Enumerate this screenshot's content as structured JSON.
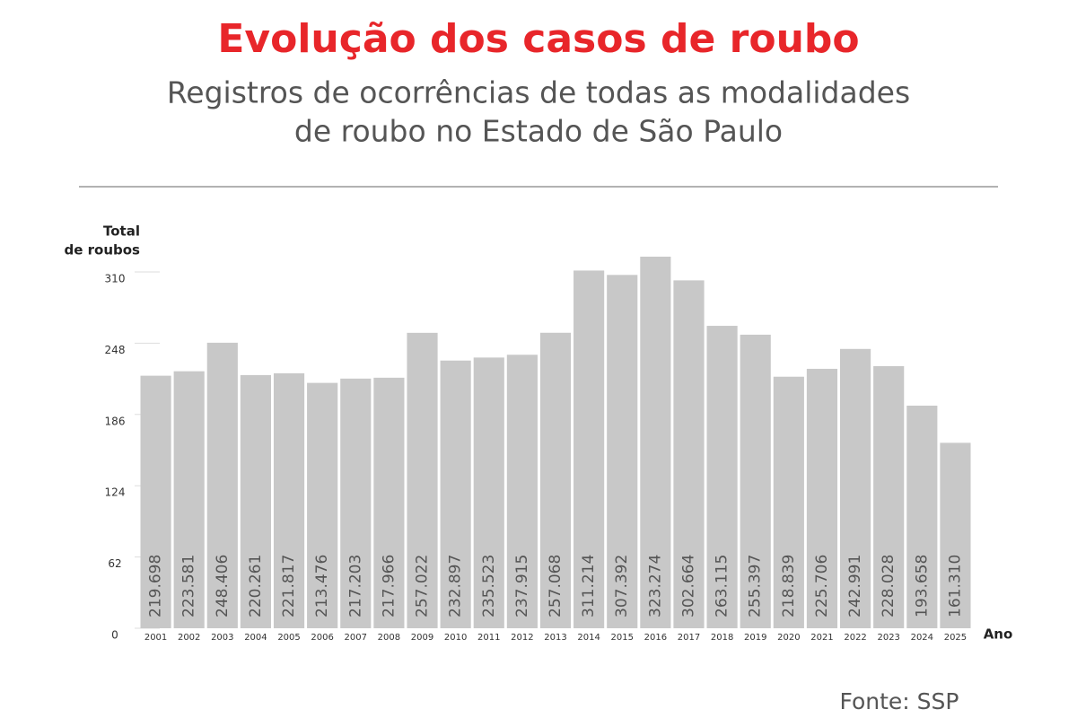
{
  "chart_data": {
    "type": "bar",
    "title": "Evolução dos casos de roubo",
    "subtitle": [
      "Registros de ocorrências de todas as modalidades",
      "de roubo no Estado de São Paulo"
    ],
    "y_label": [
      "Total",
      "de roubos"
    ],
    "x_label": "Ano",
    "source": "Fonte: SSP",
    "categories": [
      "2001",
      "2002",
      "2003",
      "2004",
      "2005",
      "2006",
      "2007",
      "2008",
      "2009",
      "2010",
      "2011",
      "2012",
      "2013",
      "2014",
      "2015",
      "2016",
      "2017",
      "2018",
      "2019",
      "2020",
      "2021",
      "2022",
      "2023",
      "2024",
      "2025"
    ],
    "values": [
      219.698,
      223.581,
      248.406,
      220.261,
      221.817,
      213.476,
      217.203,
      217.966,
      257.022,
      232.897,
      235.523,
      237.915,
      257.068,
      311.214,
      307.392,
      323.274,
      302.664,
      263.115,
      255.397,
      218.839,
      225.706,
      242.991,
      228.028,
      193.658,
      161.31
    ],
    "value_labels": [
      "219.698",
      "223.581",
      "248.406",
      "220.261",
      "221.817",
      "213.476",
      "217.203",
      "217.966",
      "257.022",
      "232.897",
      "235.523",
      "237.915",
      "257.068",
      "311.214",
      "307.392",
      "323.274",
      "302.664",
      "263.115",
      "255.397",
      "218.839",
      "225.706",
      "242.991",
      "228.028",
      "193.658",
      "161.310"
    ],
    "color": "#c8c8c8",
    "ylim": [
      0,
      330
    ],
    "yticks": [
      0,
      62,
      124,
      186,
      248,
      310
    ]
  }
}
